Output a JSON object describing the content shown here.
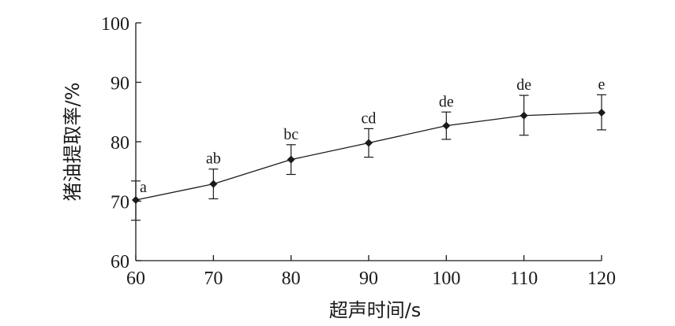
{
  "chart_data": {
    "type": "line",
    "xlabel": "超声时间/s",
    "ylabel": "猪油提取率/%",
    "xlim": [
      60,
      120
    ],
    "ylim": [
      60,
      100
    ],
    "x_ticks": [
      "60",
      "70",
      "80",
      "90",
      "100",
      "110",
      "120"
    ],
    "y_ticks": [
      "60",
      "70",
      "80",
      "90",
      "100"
    ],
    "grid": false,
    "series": [
      {
        "x": [
          60,
          70,
          80,
          90,
          100,
          110,
          120
        ],
        "y": [
          70.2,
          72.9,
          77.0,
          79.8,
          82.7,
          84.4,
          84.9
        ],
        "err_low": [
          66.8,
          70.4,
          74.5,
          77.4,
          80.4,
          81.1,
          82.0
        ],
        "err_high": [
          73.4,
          75.4,
          79.5,
          82.2,
          85.0,
          87.8,
          87.9
        ],
        "labels": [
          "a",
          "ab",
          "bc",
          "cd",
          "de",
          "de",
          "e"
        ]
      }
    ]
  }
}
